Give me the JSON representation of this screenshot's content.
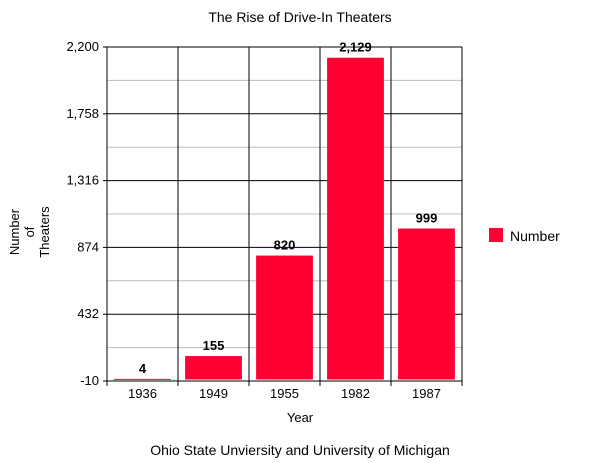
{
  "chart_data": {
    "type": "bar",
    "title": "The Rise of Drive-In Theaters",
    "xlabel": "Year",
    "ylabel": [
      "Number",
      "of",
      "Theaters"
    ],
    "categories": [
      "1936",
      "1949",
      "1955",
      "1982",
      "1987"
    ],
    "series": [
      {
        "name": "Number",
        "values": [
          4,
          155,
          820,
          2129,
          999
        ],
        "color": "#ff0033"
      }
    ],
    "data_labels": [
      "4",
      "155",
      "820",
      "2,129",
      "999"
    ],
    "ylim": [
      -10,
      2200
    ],
    "yticks": [
      -10,
      432,
      874,
      1316,
      1758,
      2200
    ],
    "ytick_labels": [
      "-10",
      "432",
      "874",
      "1,316",
      "1,758",
      "2,200"
    ],
    "grid": true,
    "legend_position": "right",
    "source": "Ohio State Unviersity and University of Michigan"
  }
}
